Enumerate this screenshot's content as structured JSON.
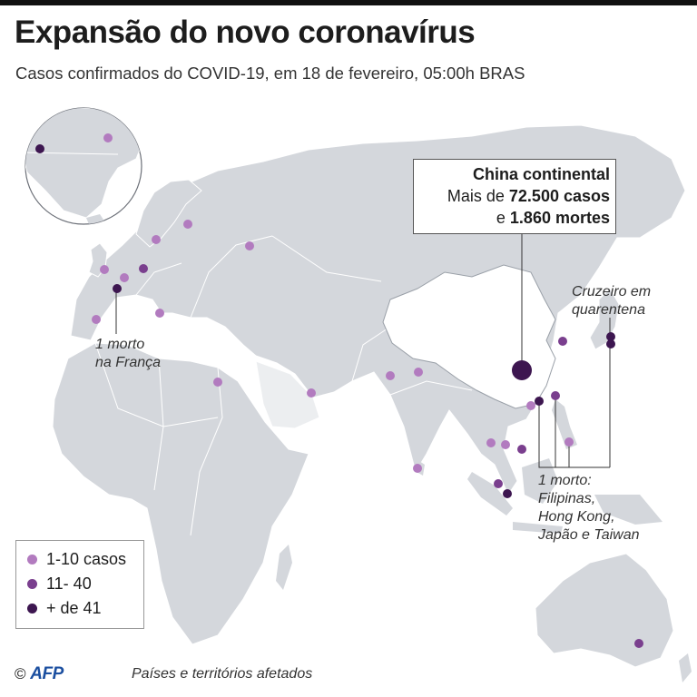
{
  "title": "Expansão do novo coronavírus",
  "subtitle": "Casos confirmados do COVID-19, em 18 de fevereiro, 05:00h BRAS",
  "callout": {
    "line1": "China continental",
    "line2_prefix": "Mais de ",
    "line2_bold": "72.500 casos",
    "line3_prefix": "e ",
    "line3_bold": "1.860 mortes"
  },
  "notes": {
    "france_1": "1 morto",
    "france_2": "na França",
    "cruise_1": "Cruzeiro em",
    "cruise_2": "quarentena",
    "asia_1": "1 morto:",
    "asia_2": "Filipinas,",
    "asia_3": "Hong Kong,",
    "asia_4": "Japão e Taiwan"
  },
  "legend": [
    {
      "label": "1-10 casos",
      "color": "#b27bbf"
    },
    {
      "label": "11- 40",
      "color": "#7a3f8e"
    },
    {
      "label": "+ de 41",
      "color": "#3d1650"
    }
  ],
  "footer": {
    "copyright": "©",
    "agency": "AFP",
    "caption": "Países e territórios afetados"
  },
  "colors": {
    "land": "#d4d7dc",
    "affected": "#eceef0",
    "border": "#ffffff",
    "china": "#ffffff",
    "light": "#b27bbf",
    "medium": "#7a3f8e",
    "dark": "#3d1650"
  }
}
